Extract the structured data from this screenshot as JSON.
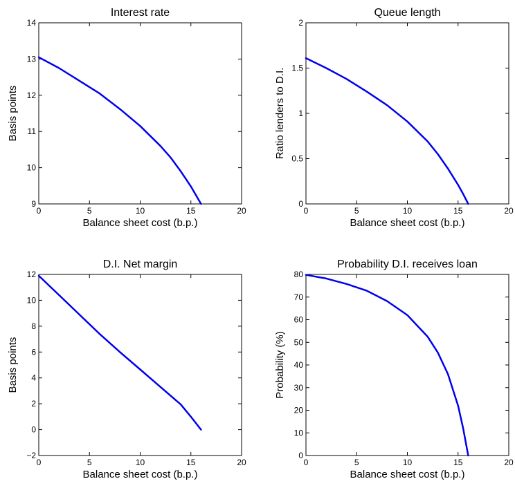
{
  "chart_data": [
    {
      "type": "line",
      "title": "Interest rate",
      "xlabel": "Balance sheet cost (b.p.)",
      "ylabel": "Basis points",
      "xlim": [
        0,
        20
      ],
      "ylim": [
        9,
        14
      ],
      "xticks": [
        0,
        5,
        10,
        15,
        20
      ],
      "yticks": [
        9,
        10,
        11,
        12,
        13,
        14
      ],
      "grid": false,
      "series_color": "#0000ee",
      "series": [
        {
          "x": [
            0,
            2,
            4,
            6,
            8,
            10,
            12,
            13,
            14,
            15,
            16
          ],
          "y": [
            13.05,
            12.75,
            12.4,
            12.05,
            11.62,
            11.15,
            10.6,
            10.28,
            9.9,
            9.48,
            9.0
          ]
        }
      ]
    },
    {
      "type": "line",
      "title": "Queue length",
      "xlabel": "Balance sheet cost (b.p.)",
      "ylabel": "Ratio lenders to D.I.",
      "xlim": [
        0,
        20
      ],
      "ylim": [
        0,
        2
      ],
      "xticks": [
        0,
        5,
        10,
        15,
        20
      ],
      "yticks": [
        0,
        0.5,
        1,
        1.5,
        2
      ],
      "ytick_labels": [
        "0",
        "0.5",
        "1",
        "1.5",
        "2"
      ],
      "grid": false,
      "series_color": "#0000ee",
      "series": [
        {
          "x": [
            0,
            2,
            4,
            6,
            8,
            10,
            12,
            13,
            14,
            15,
            15.5,
            16
          ],
          "y": [
            1.61,
            1.5,
            1.38,
            1.24,
            1.09,
            0.91,
            0.69,
            0.55,
            0.39,
            0.21,
            0.11,
            0.0
          ]
        }
      ]
    },
    {
      "type": "line",
      "title": "D.I. Net margin",
      "xlabel": "Balance sheet cost (b.p.)",
      "ylabel": "Basis points",
      "xlim": [
        0,
        20
      ],
      "ylim": [
        -2,
        12
      ],
      "xticks": [
        0,
        5,
        10,
        15,
        20
      ],
      "yticks": [
        -2,
        0,
        2,
        4,
        6,
        8,
        10,
        12
      ],
      "ytick_labels": [
        "−2",
        "0",
        "2",
        "4",
        "6",
        "8",
        "10",
        "12"
      ],
      "grid": false,
      "series_color": "#0000ee",
      "series": [
        {
          "x": [
            0,
            2,
            4,
            6,
            8,
            10,
            12,
            14,
            15,
            16
          ],
          "y": [
            11.9,
            10.4,
            8.9,
            7.4,
            6.0,
            4.65,
            3.3,
            1.95,
            1.0,
            0.0
          ]
        }
      ]
    },
    {
      "type": "line",
      "title": "Probability D.I. receives loan",
      "xlabel": "Balance sheet cost (b.p.)",
      "ylabel": "Probability (%)",
      "xlim": [
        0,
        20
      ],
      "ylim": [
        0,
        80
      ],
      "xticks": [
        0,
        5,
        10,
        15,
        20
      ],
      "yticks": [
        0,
        10,
        20,
        30,
        40,
        50,
        60,
        70,
        80
      ],
      "grid": false,
      "series_color": "#0000ee",
      "series": [
        {
          "x": [
            0,
            2,
            4,
            6,
            8,
            10,
            12,
            13,
            14,
            15,
            15.5,
            16
          ],
          "y": [
            79.8,
            78.2,
            75.8,
            72.8,
            68.2,
            62.0,
            52.5,
            45.5,
            36.0,
            22.0,
            12.0,
            0.0
          ]
        }
      ]
    }
  ]
}
